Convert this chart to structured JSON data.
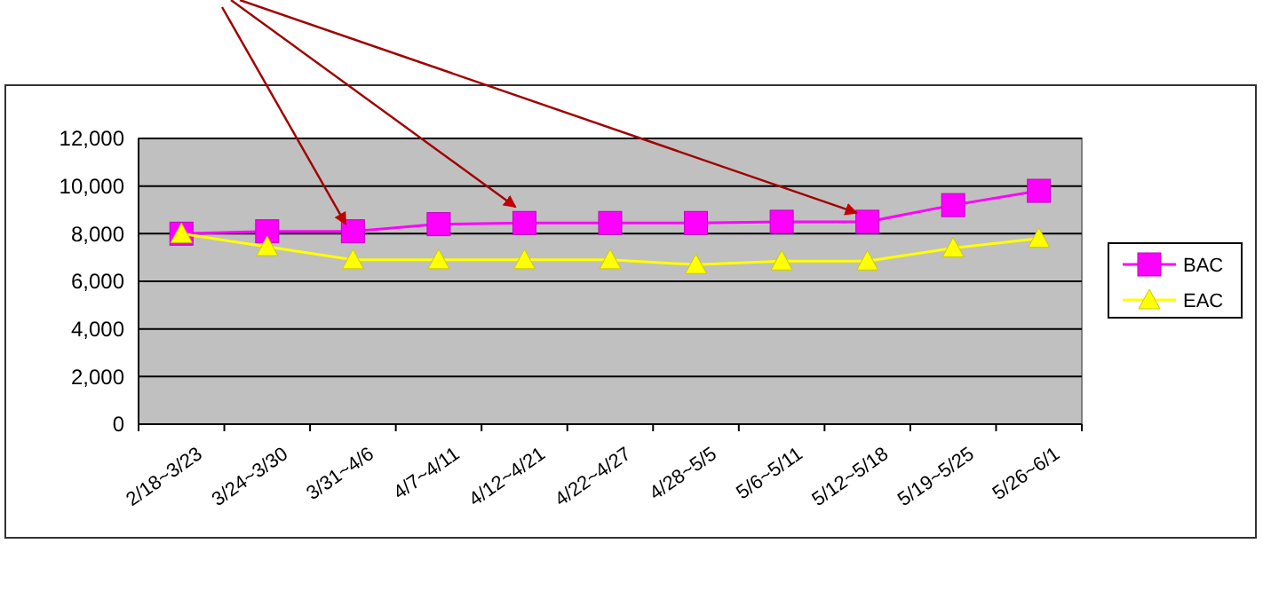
{
  "chart_data": {
    "type": "line",
    "categories": [
      "2/18~3/23",
      "3/24~3/30",
      "3/31~4/6",
      "4/7~4/11",
      "4/12~4/21",
      "4/22~4/27",
      "4/28~5/5",
      "5/6~5/11",
      "5/12~5/18",
      "5/19~5/25",
      "5/26~6/1"
    ],
    "series": [
      {
        "name": "BAC",
        "color": "#ff00ff",
        "marker": "square",
        "values": [
          8000,
          8100,
          8100,
          8400,
          8450,
          8450,
          8450,
          8500,
          8500,
          9200,
          9800
        ]
      },
      {
        "name": "EAC",
        "color": "#ffff00",
        "marker": "triangle",
        "values": [
          8000,
          7450,
          6900,
          6900,
          6900,
          6900,
          6700,
          6850,
          6850,
          7400,
          7800
        ]
      }
    ],
    "ylim": [
      0,
      12000
    ],
    "yticks": [
      {
        "value": 0,
        "label": "0"
      },
      {
        "value": 2000,
        "label": "2,000"
      },
      {
        "value": 4000,
        "label": "4,000"
      },
      {
        "value": 6000,
        "label": "6,000"
      },
      {
        "value": 8000,
        "label": "8,000"
      },
      {
        "value": 10000,
        "label": "10,000"
      },
      {
        "value": 12000,
        "label": "12,000"
      }
    ],
    "grid": "y",
    "legend": "right"
  }
}
